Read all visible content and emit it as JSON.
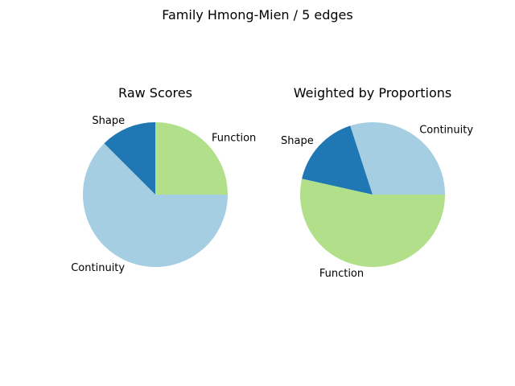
{
  "figure": {
    "suptitle": "Family Hmong-Mien / 5 edges"
  },
  "chart_data": [
    {
      "type": "pie",
      "title": "Raw Scores",
      "slices": [
        {
          "label": "Function",
          "value": 25,
          "color": "#b2df8a"
        },
        {
          "label": "Shape",
          "value": 12.5,
          "color": "#1f78b4"
        },
        {
          "label": "Continuity",
          "value": 62.5,
          "color": "#a6cee3"
        }
      ],
      "legend": "none"
    },
    {
      "type": "pie",
      "title": "Weighted by Proportions",
      "slices": [
        {
          "label": "Continuity",
          "value": 30,
          "color": "#a6cee3"
        },
        {
          "label": "Shape",
          "value": 16.5,
          "color": "#1f78b4"
        },
        {
          "label": "Function",
          "value": 53.5,
          "color": "#b2df8a"
        }
      ],
      "legend": "none"
    }
  ]
}
